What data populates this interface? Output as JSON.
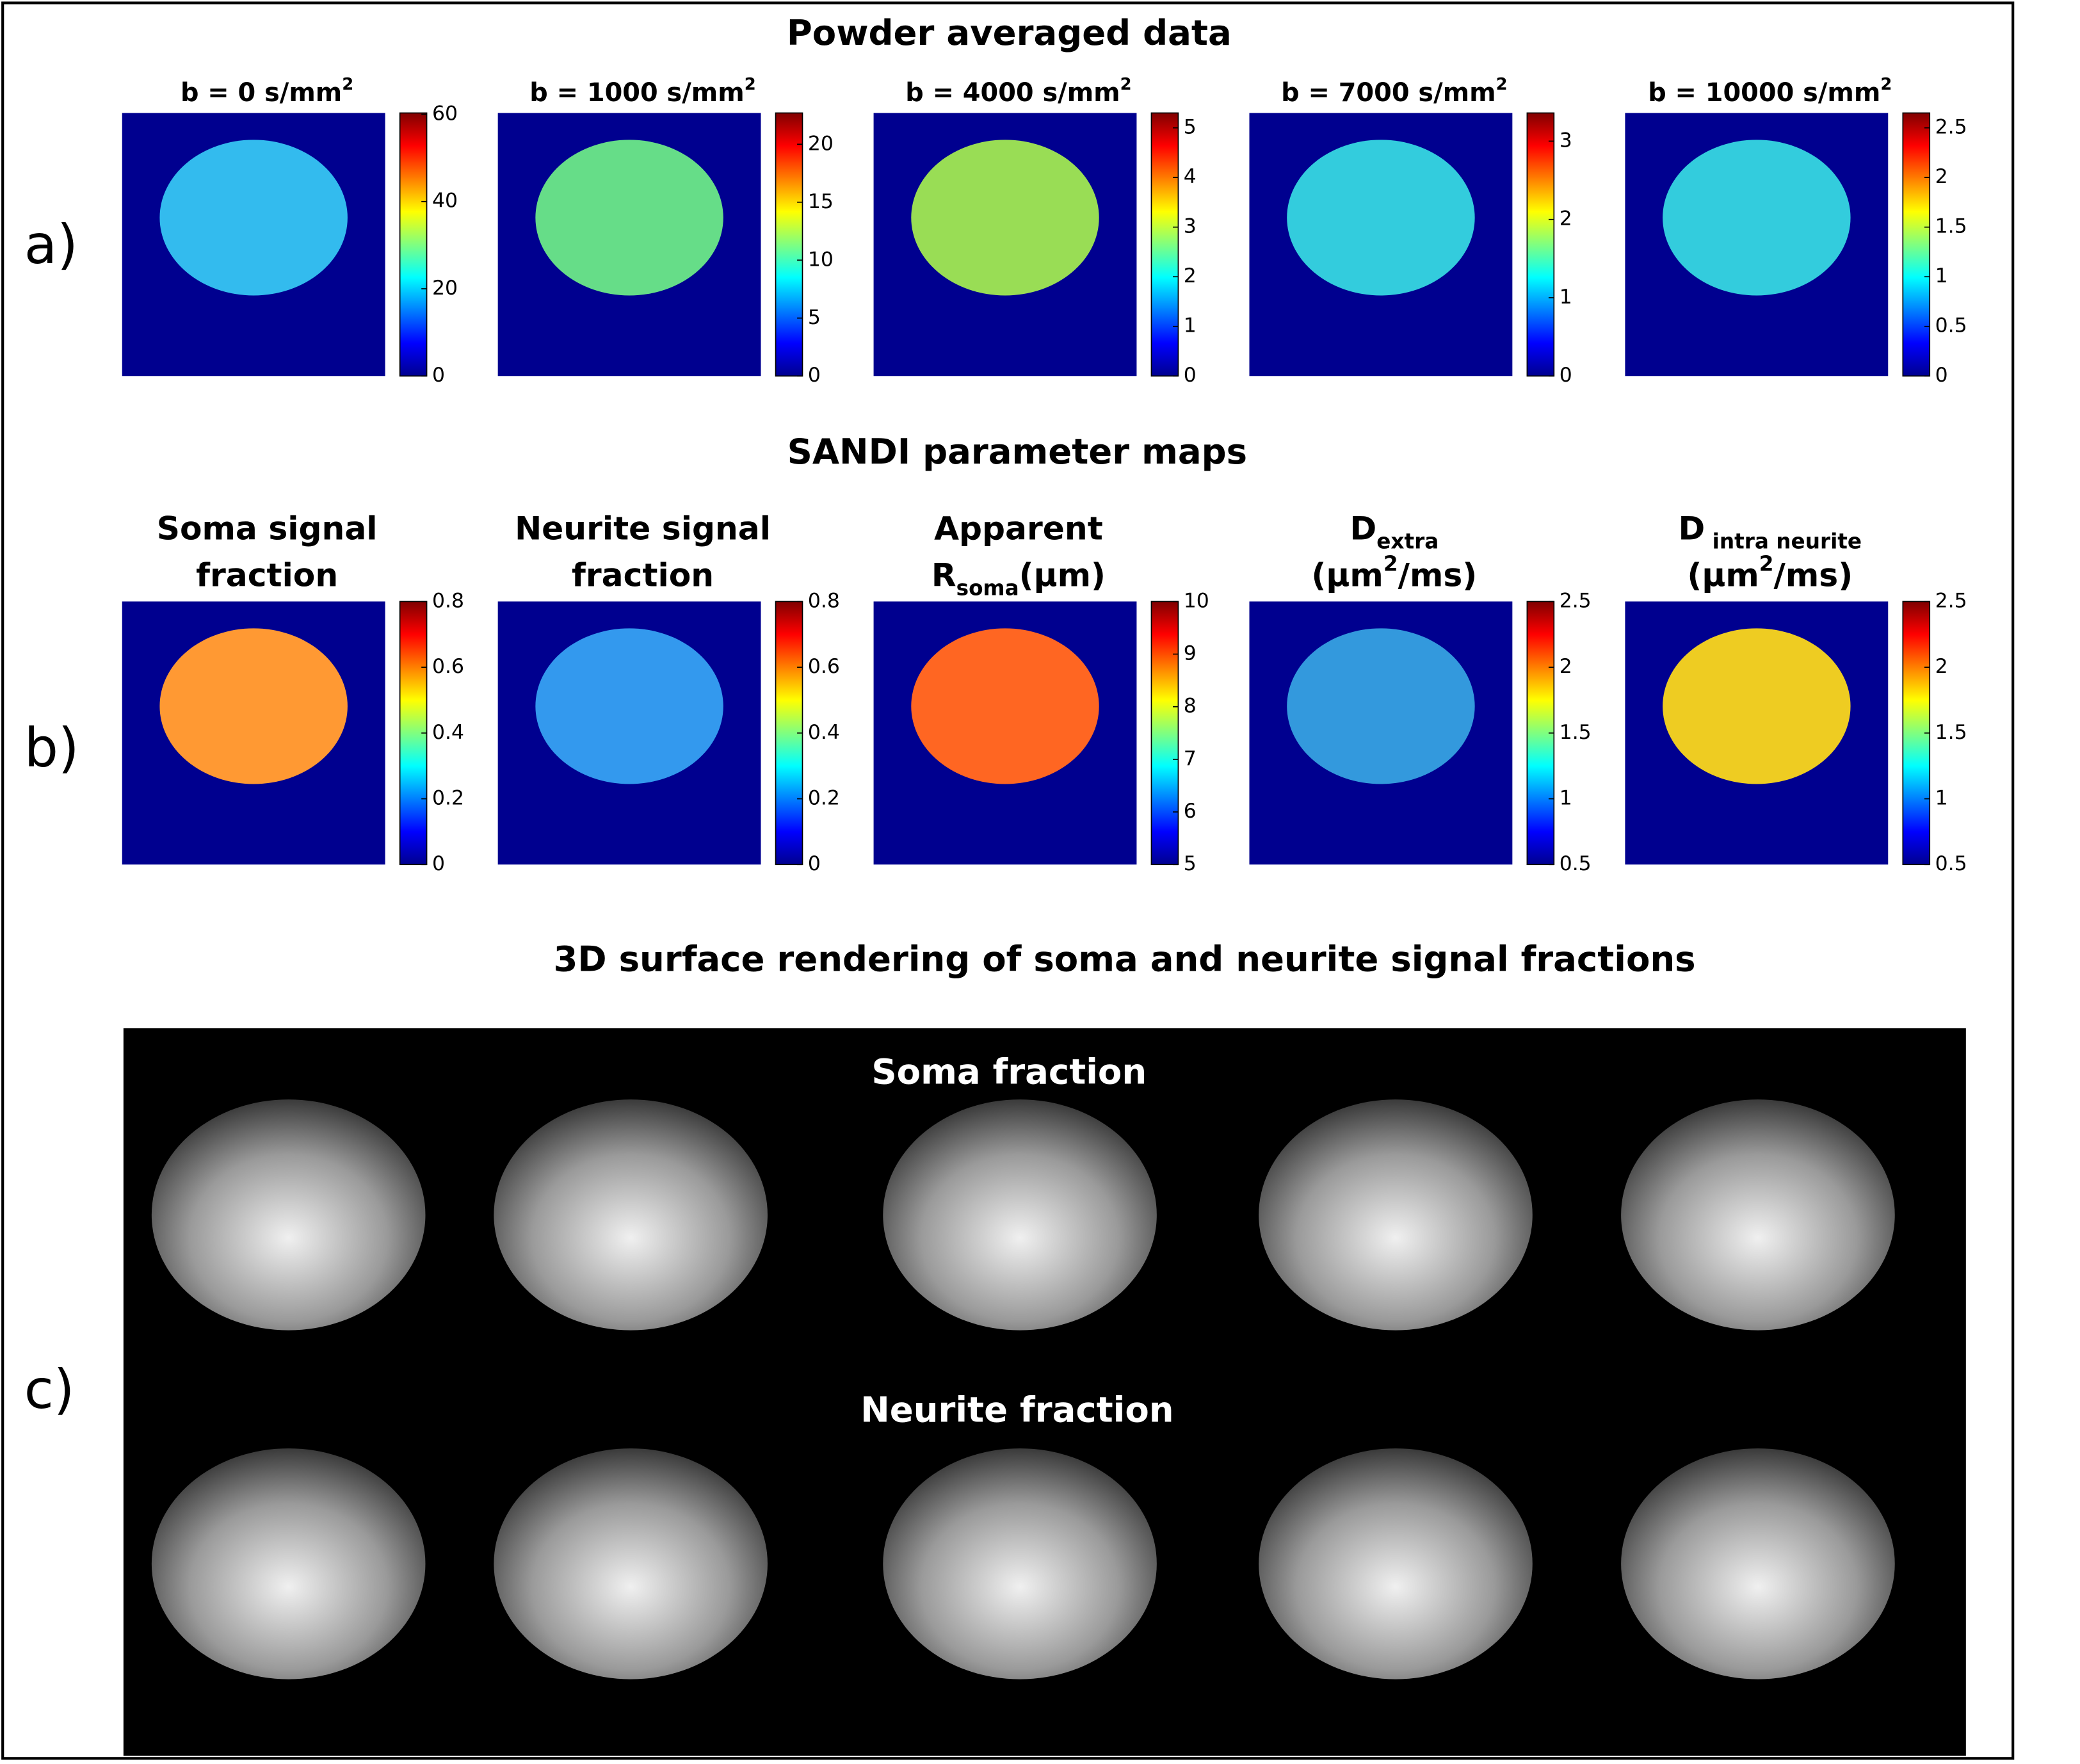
{
  "labels": [
    "a)",
    "b)",
    "c)"
  ],
  "panel_a": {
    "title": "Powder averaged data",
    "maps": [
      {
        "title": [
          [
            {
              "t": "b = 0 s/mm"
            },
            {
              "t": "2",
              "sup": true
            }
          ]
        ],
        "ylim": [
          0,
          60.3
        ],
        "ticks": [
          0,
          20,
          40,
          60
        ]
      },
      {
        "title": [
          [
            {
              "t": "b = 1000 s/mm"
            },
            {
              "t": "2",
              "sup": true
            }
          ]
        ],
        "ylim": [
          0,
          22.7
        ],
        "ticks": [
          0,
          5,
          10,
          15,
          20
        ]
      },
      {
        "title": [
          [
            {
              "t": "b = 4000 s/mm"
            },
            {
              "t": "2",
              "sup": true
            }
          ]
        ],
        "ylim": [
          0,
          5.3
        ],
        "ticks": [
          0,
          1,
          2,
          3,
          4,
          5
        ]
      },
      {
        "title": [
          [
            {
              "t": "b = 7000 s/mm"
            },
            {
              "t": "2",
              "sup": true
            }
          ]
        ],
        "ylim": [
          0,
          3.36
        ],
        "ticks": [
          0,
          1,
          2,
          3
        ]
      },
      {
        "title": [
          [
            {
              "t": "b = 10000 s/mm"
            },
            {
              "t": "2",
              "sup": true
            }
          ]
        ],
        "ylim": [
          0,
          2.65
        ],
        "ticks": [
          0,
          0.5,
          1,
          1.5,
          2,
          2.5
        ]
      }
    ]
  },
  "panel_b": {
    "title": "SANDI parameter maps",
    "maps": [
      {
        "title": [
          [
            {
              "t": "Soma signal"
            }
          ],
          [
            {
              "t": "fraction"
            }
          ]
        ],
        "ylim": [
          0,
          0.8
        ],
        "ticks": [
          0,
          0.2,
          0.4,
          0.6,
          0.8
        ]
      },
      {
        "title": [
          [
            {
              "t": "Neurite signal"
            }
          ],
          [
            {
              "t": "fraction"
            }
          ]
        ],
        "ylim": [
          0,
          0.8
        ],
        "ticks": [
          0,
          0.2,
          0.4,
          0.6,
          0.8
        ]
      },
      {
        "title": [
          [
            {
              "t": "Apparent"
            }
          ],
          [
            {
              "t": "R"
            },
            {
              "t": "soma",
              "sub": true
            },
            {
              "t": "(μm)"
            }
          ]
        ],
        "ylim": [
          5,
          10
        ],
        "ticks": [
          5,
          6,
          7,
          8,
          9,
          10
        ]
      },
      {
        "title": [
          [
            {
              "t": "D"
            },
            {
              "t": "extra",
              "sub": true
            }
          ],
          [
            {
              "t": "(μm"
            },
            {
              "t": "2",
              "sup": true
            },
            {
              "t": "/ms)"
            }
          ]
        ],
        "ylim": [
          0.5,
          2.5
        ],
        "ticks": [
          0.5,
          1,
          1.5,
          2,
          2.5
        ]
      },
      {
        "title": [
          [
            {
              "t": "D"
            },
            {
              "t": " intra neurite",
              "sub": true
            }
          ],
          [
            {
              "t": "(μm"
            },
            {
              "t": "2",
              "sup": true
            },
            {
              "t": "/ms)"
            }
          ]
        ],
        "ylim": [
          0.5,
          2.5
        ],
        "ticks": [
          0.5,
          1,
          1.5,
          2,
          2.5
        ]
      }
    ]
  },
  "panel_c": {
    "title": "3D surface rendering of soma and neurite signal fractions",
    "rows": [
      "Soma fraction",
      "Neurite fraction"
    ]
  }
}
